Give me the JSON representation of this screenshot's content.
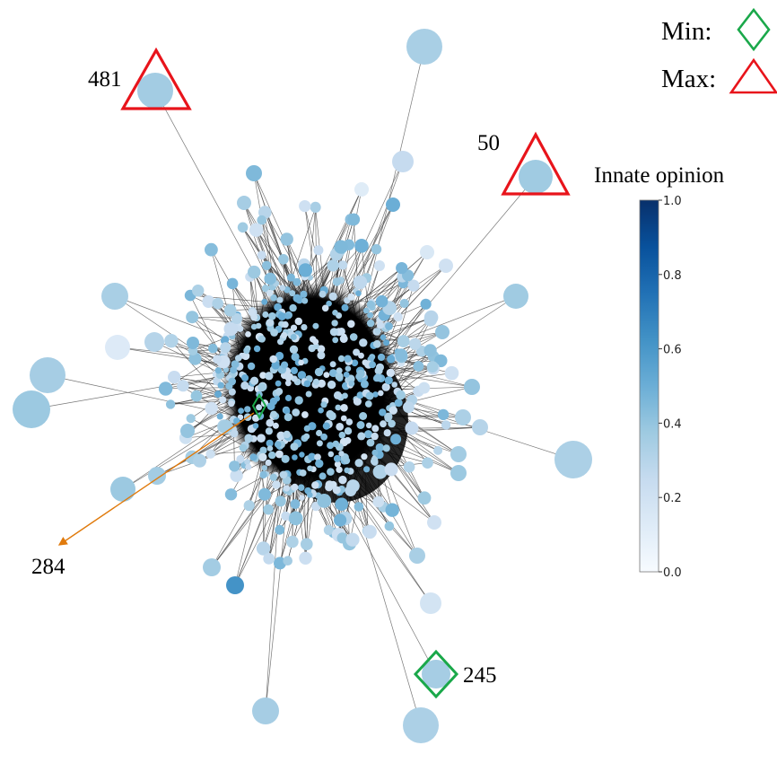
{
  "legend": {
    "min_label": "Min:",
    "max_label": "Max:",
    "min_marker_color": "#1aa84a",
    "max_marker_color": "#e8141b"
  },
  "colorbar": {
    "title": "Innate opinion",
    "ticks": [
      "1.0",
      "0.8",
      "0.6",
      "0.4",
      "0.2",
      "0.0"
    ],
    "range": [
      0.0,
      1.0
    ],
    "colormap": "Blues"
  },
  "highlighted_nodes": {
    "max_481": {
      "label": "481",
      "marker": "triangle",
      "color": "#e8141b"
    },
    "max_50": {
      "label": "50",
      "marker": "triangle",
      "color": "#e8141b"
    },
    "min_245": {
      "label": "245",
      "marker": "diamond",
      "color": "#1aa84a"
    },
    "min_284": {
      "label": "284",
      "marker": "diamond",
      "color": "#1aa84a",
      "arrow_color": "#e07a0c"
    }
  },
  "colors": {
    "edge": "#555555",
    "node_default": "#a8cde3",
    "dark_node": "#3f84c0",
    "core": "#000000"
  }
}
